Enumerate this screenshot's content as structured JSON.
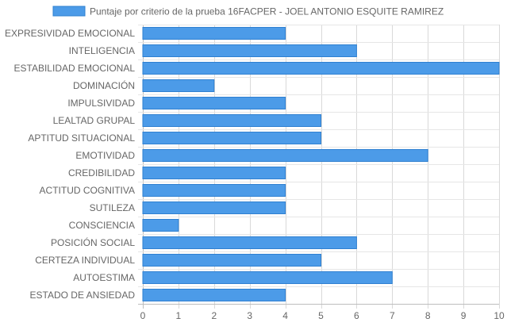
{
  "chart_data": {
    "type": "bar",
    "orientation": "horizontal",
    "categories": [
      "EXPRESIVIDAD EMOCIONAL",
      "INTELIGENCIA",
      "ESTABILIDAD EMOCIONAL",
      "DOMINACIÓN",
      "IMPULSIVIDAD",
      "LEALTAD GRUPAL",
      "APTITUD SITUACIONAL",
      "EMOTIVIDAD",
      "CREDIBILIDAD",
      "ACTITUD COGNITIVA",
      "SUTILEZA",
      "CONSCIENCIA",
      "POSICIÓN SOCIAL",
      "CERTEZA INDIVIDUAL",
      "AUTOESTIMA",
      "ESTADO DE ANSIEDAD"
    ],
    "series": [
      {
        "name": "Puntaje por criterio de la prueba 16FACPER - JOEL ANTONIO ESQUITE RAMIREZ",
        "values": [
          4,
          6,
          10,
          2,
          4,
          5,
          5,
          8,
          4,
          4,
          4,
          1,
          6,
          5,
          7,
          4
        ],
        "color": "#4c9be8",
        "border_color": "#2f80d1"
      }
    ],
    "xlim": [
      0,
      10
    ],
    "x_ticks": [
      "0",
      "1",
      "2",
      "3",
      "4",
      "5",
      "6",
      "7",
      "8",
      "9",
      "10"
    ],
    "grid": true,
    "legend_position": "top"
  }
}
